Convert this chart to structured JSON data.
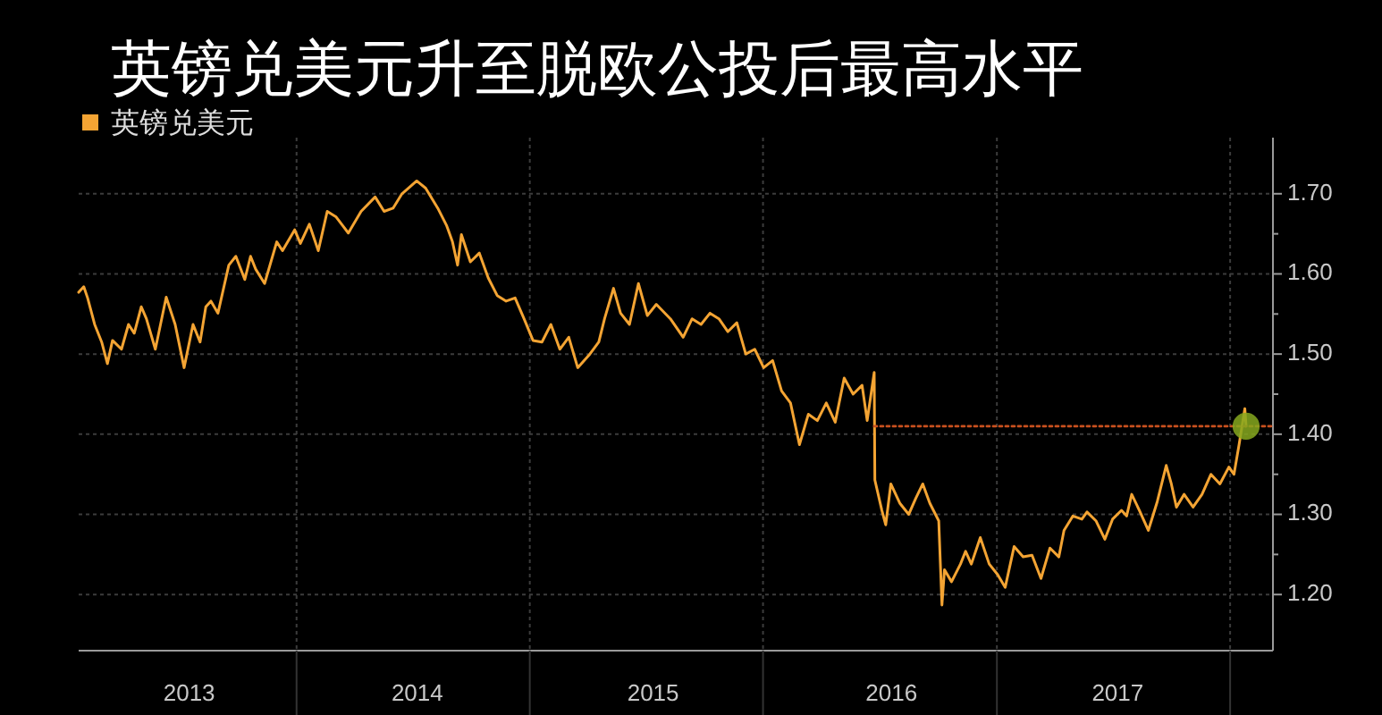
{
  "chart_data": {
    "type": "line",
    "title": "英镑兑美元升至脱欧公投后最高水平",
    "legend": "top left",
    "grid": true,
    "xlim": [
      "2013-01-25",
      "2018-03-09"
    ],
    "xticks": [
      {
        "value": "2013-07-17",
        "label": "2013"
      },
      {
        "value": "2014-01-01",
        "label": null
      },
      {
        "value": "2014-07-09",
        "label": "2014"
      },
      {
        "value": "2015-01-01",
        "label": null
      },
      {
        "value": "2015-07-13",
        "label": "2015"
      },
      {
        "value": "2016-01-01",
        "label": null
      },
      {
        "value": "2016-07-20",
        "label": "2016"
      },
      {
        "value": "2017-01-01",
        "label": null
      },
      {
        "value": "2017-07-09",
        "label": "2017"
      },
      {
        "value": "2018-01-01",
        "label": null
      }
    ],
    "ylim": [
      1.13,
      1.77
    ],
    "yticks": [
      {
        "value": 1.2,
        "label": "1.20"
      },
      {
        "value": 1.25,
        "label": null
      },
      {
        "value": 1.3,
        "label": "1.30"
      },
      {
        "value": 1.35,
        "label": null
      },
      {
        "value": 1.4,
        "label": "1.40"
      },
      {
        "value": 1.45,
        "label": null
      },
      {
        "value": 1.5,
        "label": "1.50"
      },
      {
        "value": 1.55,
        "label": null
      },
      {
        "value": 1.6,
        "label": "1.60"
      },
      {
        "value": 1.65,
        "label": null
      },
      {
        "value": 1.7,
        "label": "1.70"
      }
    ],
    "series": [
      {
        "name": "英镑兑美元",
        "color": "#f4a433",
        "x": [
          "2013-01-25",
          "2013-02-02",
          "2013-02-08",
          "2013-02-19",
          "2013-03-02",
          "2013-03-11",
          "2013-03-19",
          "2013-04-02",
          "2013-04-13",
          "2013-04-22",
          "2013-05-03",
          "2013-05-11",
          "2013-05-25",
          "2013-06-11",
          "2013-06-25",
          "2013-07-09",
          "2013-07-23",
          "2013-08-03",
          "2013-08-12",
          "2013-08-20",
          "2013-08-31",
          "2013-09-17",
          "2013-09-28",
          "2013-10-12",
          "2013-10-21",
          "2013-10-29",
          "2013-11-12",
          "2013-12-01",
          "2013-12-10",
          "2013-12-29",
          "2014-01-07",
          "2014-01-21",
          "2014-02-04",
          "2014-02-18",
          "2014-03-04",
          "2014-03-23",
          "2014-04-12",
          "2014-05-04",
          "2014-05-18",
          "2014-06-01",
          "2014-06-15",
          "2014-07-08",
          "2014-07-22",
          "2014-08-10",
          "2014-08-24",
          "2014-09-02",
          "2014-09-10",
          "2014-09-16",
          "2014-09-30",
          "2014-10-14",
          "2014-10-28",
          "2014-11-11",
          "2014-11-25",
          "2014-12-09",
          "2014-12-23",
          "2015-01-06",
          "2015-01-20",
          "2015-02-03",
          "2015-02-17",
          "2015-03-03",
          "2015-03-17",
          "2015-04-05",
          "2015-04-19",
          "2015-04-28",
          "2015-05-12",
          "2015-05-23",
          "2015-06-06",
          "2015-06-20",
          "2015-07-04",
          "2015-07-18",
          "2015-08-09",
          "2015-08-29",
          "2015-09-12",
          "2015-09-26",
          "2015-10-10",
          "2015-10-24",
          "2015-11-07",
          "2015-11-21",
          "2015-12-05",
          "2015-12-19",
          "2016-01-02",
          "2016-01-16",
          "2016-01-30",
          "2016-02-13",
          "2016-02-27",
          "2016-03-12",
          "2016-03-26",
          "2016-04-09",
          "2016-04-23",
          "2016-05-07",
          "2016-05-21",
          "2016-06-04",
          "2016-06-12",
          "2016-06-23",
          "2016-06-24",
          "2016-07-05",
          "2016-07-11",
          "2016-07-19",
          "2016-08-02",
          "2016-08-16",
          "2016-08-27",
          "2016-09-07",
          "2016-09-18",
          "2016-10-02",
          "2016-10-07",
          "2016-10-11",
          "2016-10-22",
          "2016-11-05",
          "2016-11-13",
          "2016-11-22",
          "2016-12-06",
          "2016-12-20",
          "2017-01-02",
          "2017-01-14",
          "2017-01-28",
          "2017-02-11",
          "2017-02-25",
          "2017-03-11",
          "2017-03-25",
          "2017-04-08",
          "2017-04-16",
          "2017-04-30",
          "2017-05-14",
          "2017-05-22",
          "2017-06-05",
          "2017-06-19",
          "2017-07-01",
          "2017-07-15",
          "2017-07-23",
          "2017-07-31",
          "2017-08-12",
          "2017-08-26",
          "2017-09-09",
          "2017-09-23",
          "2017-10-01",
          "2017-10-09",
          "2017-10-21",
          "2017-11-04",
          "2017-11-18",
          "2017-12-02",
          "2017-12-16",
          "2017-12-30",
          "2018-01-07",
          "2018-01-15",
          "2018-01-24",
          "2018-01-26"
        ],
        "values": [
          1.577,
          1.584,
          1.57,
          1.537,
          1.515,
          1.488,
          1.517,
          1.506,
          1.537,
          1.526,
          1.559,
          1.544,
          1.506,
          1.571,
          1.537,
          1.483,
          1.537,
          1.515,
          1.559,
          1.566,
          1.551,
          1.611,
          1.622,
          1.593,
          1.622,
          1.606,
          1.588,
          1.64,
          1.629,
          1.655,
          1.638,
          1.662,
          1.629,
          1.678,
          1.671,
          1.651,
          1.678,
          1.696,
          1.678,
          1.682,
          1.7,
          1.716,
          1.707,
          1.682,
          1.66,
          1.64,
          1.611,
          1.649,
          1.615,
          1.626,
          1.595,
          1.573,
          1.566,
          1.57,
          1.544,
          1.517,
          1.515,
          1.537,
          1.506,
          1.521,
          1.483,
          1.5,
          1.515,
          1.544,
          1.582,
          1.551,
          1.537,
          1.588,
          1.548,
          1.562,
          1.544,
          1.521,
          1.544,
          1.537,
          1.551,
          1.544,
          1.528,
          1.539,
          1.5,
          1.506,
          1.483,
          1.492,
          1.454,
          1.439,
          1.387,
          1.425,
          1.417,
          1.439,
          1.415,
          1.47,
          1.45,
          1.461,
          1.417,
          1.477,
          1.343,
          1.305,
          1.287,
          1.338,
          1.314,
          1.3,
          1.32,
          1.338,
          1.314,
          1.292,
          1.187,
          1.231,
          1.216,
          1.238,
          1.254,
          1.238,
          1.271,
          1.238,
          1.225,
          1.209,
          1.26,
          1.247,
          1.249,
          1.22,
          1.258,
          1.247,
          1.28,
          1.298,
          1.294,
          1.303,
          1.292,
          1.269,
          1.294,
          1.305,
          1.298,
          1.325,
          1.305,
          1.28,
          1.316,
          1.361,
          1.338,
          1.309,
          1.325,
          1.309,
          1.325,
          1.35,
          1.338,
          1.359,
          1.35,
          1.387,
          1.432,
          1.41
        ]
      },
      {
        "color": "#c8501e",
        "line_style": "dotted",
        "x": [
          "2016-06-23",
          "2018-03-09"
        ],
        "values": [
          1.41,
          1.41
        ]
      },
      {
        "type": "scatter",
        "color": "#86a81e",
        "marker": "circle",
        "x": [
          "2018-01-26"
        ],
        "values": [
          1.41
        ]
      }
    ]
  }
}
